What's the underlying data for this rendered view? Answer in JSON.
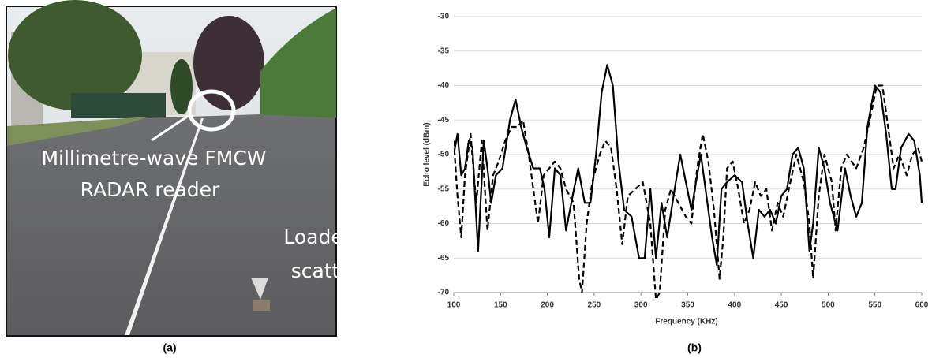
{
  "photo": {
    "annotations": [
      "Millimetre-wave FMCW",
      "RADAR reader",
      "Loaded",
      "scatterer"
    ],
    "caption": "(a)"
  },
  "chart_data": {
    "type": "line",
    "caption": "(b)",
    "x_label": "Frequency (KHz)",
    "y_label": "Echo level (dBm)",
    "xlim": [
      100,
      600
    ],
    "xticks": [
      100,
      150,
      200,
      250,
      300,
      350,
      400,
      450,
      500,
      550,
      600
    ],
    "ylim": [
      -70,
      -30
    ],
    "yticks": [
      -30,
      -35,
      -40,
      -45,
      -50,
      -55,
      -60,
      -65,
      -70
    ],
    "grid": true,
    "series": [
      {
        "color": "#000000",
        "line_style": "solid",
        "x": [
          100,
          104,
          108,
          112,
          116,
          120,
          126,
          132,
          136,
          140,
          145,
          152,
          160,
          166,
          172,
          178,
          185,
          192,
          197,
          202,
          208,
          214,
          220,
          227,
          233,
          240,
          246,
          252,
          258,
          264,
          270,
          276,
          282,
          290,
          298,
          304,
          310,
          316,
          322,
          328,
          336,
          342,
          348,
          354,
          360,
          364,
          370,
          376,
          381,
          386,
          392,
          400,
          408,
          414,
          420,
          426,
          432,
          438,
          444,
          450,
          456,
          462,
          468,
          474,
          480,
          484,
          490,
          496,
          502,
          510,
          518,
          524,
          530,
          536,
          542,
          550,
          556,
          562,
          568,
          572,
          578,
          586,
          592,
          598,
          600
        ],
        "values": [
          -50,
          -47,
          -53,
          -52,
          -48,
          -49,
          -64,
          -48,
          -52,
          -57,
          -53,
          -52,
          -45,
          -42,
          -46,
          -49,
          -52,
          -52,
          -55,
          -62,
          -52,
          -53,
          -61,
          -56,
          -52,
          -57,
          -57,
          -50,
          -41,
          -37,
          -40,
          -51,
          -58,
          -59,
          -65,
          -65,
          -55,
          -65,
          -57,
          -62,
          -55,
          -50,
          -54,
          -58,
          -53,
          -50,
          -56,
          -62,
          -66,
          -55,
          -54,
          -53,
          -54,
          -60,
          -65,
          -58,
          -59,
          -58,
          -60,
          -56,
          -55,
          -50,
          -49,
          -52,
          -64,
          -60,
          -49,
          -52,
          -57,
          -61,
          -52,
          -56,
          -59,
          -57,
          -46,
          -40,
          -41,
          -47,
          -55,
          -55,
          -49,
          -47,
          -48,
          -53,
          -57
        ]
      },
      {
        "color": "#000000",
        "line_style": "dashed",
        "x": [
          100,
          104,
          108,
          112,
          118,
          124,
          130,
          136,
          142,
          148,
          155,
          162,
          168,
          174,
          180,
          186,
          190,
          196,
          202,
          208,
          214,
          220,
          228,
          234,
          237,
          242,
          248,
          256,
          262,
          268,
          274,
          280,
          286,
          294,
          302,
          310,
          316,
          320,
          326,
          332,
          340,
          348,
          354,
          360,
          366,
          372,
          378,
          384,
          388,
          392,
          398,
          404,
          410,
          416,
          422,
          428,
          434,
          440,
          446,
          452,
          458,
          466,
          474,
          480,
          484,
          490,
          496,
          504,
          508,
          514,
          520,
          530,
          538,
          546,
          552,
          558,
          564,
          570,
          576,
          584,
          590,
          596,
          600
        ],
        "values": [
          -48,
          -56,
          -62,
          -53,
          -47,
          -57,
          -48,
          -61,
          -53,
          -51,
          -48,
          -46,
          -46,
          -45,
          -50,
          -56,
          -60,
          -53,
          -52,
          -51,
          -52,
          -55,
          -57,
          -68,
          -70,
          -60,
          -54,
          -50,
          -48,
          -49,
          -55,
          -63,
          -56,
          -55,
          -54,
          -60,
          -71,
          -70,
          -58,
          -55,
          -57,
          -59,
          -60,
          -52,
          -47,
          -51,
          -58,
          -68,
          -62,
          -52,
          -51,
          -55,
          -60,
          -58,
          -54,
          -56,
          -55,
          -61,
          -57,
          -59,
          -55,
          -50,
          -54,
          -60,
          -68,
          -56,
          -50,
          -54,
          -61,
          -52,
          -50,
          -52,
          -49,
          -44,
          -40,
          -40,
          -46,
          -52,
          -50,
          -53,
          -50,
          -49,
          -51
        ]
      }
    ]
  }
}
